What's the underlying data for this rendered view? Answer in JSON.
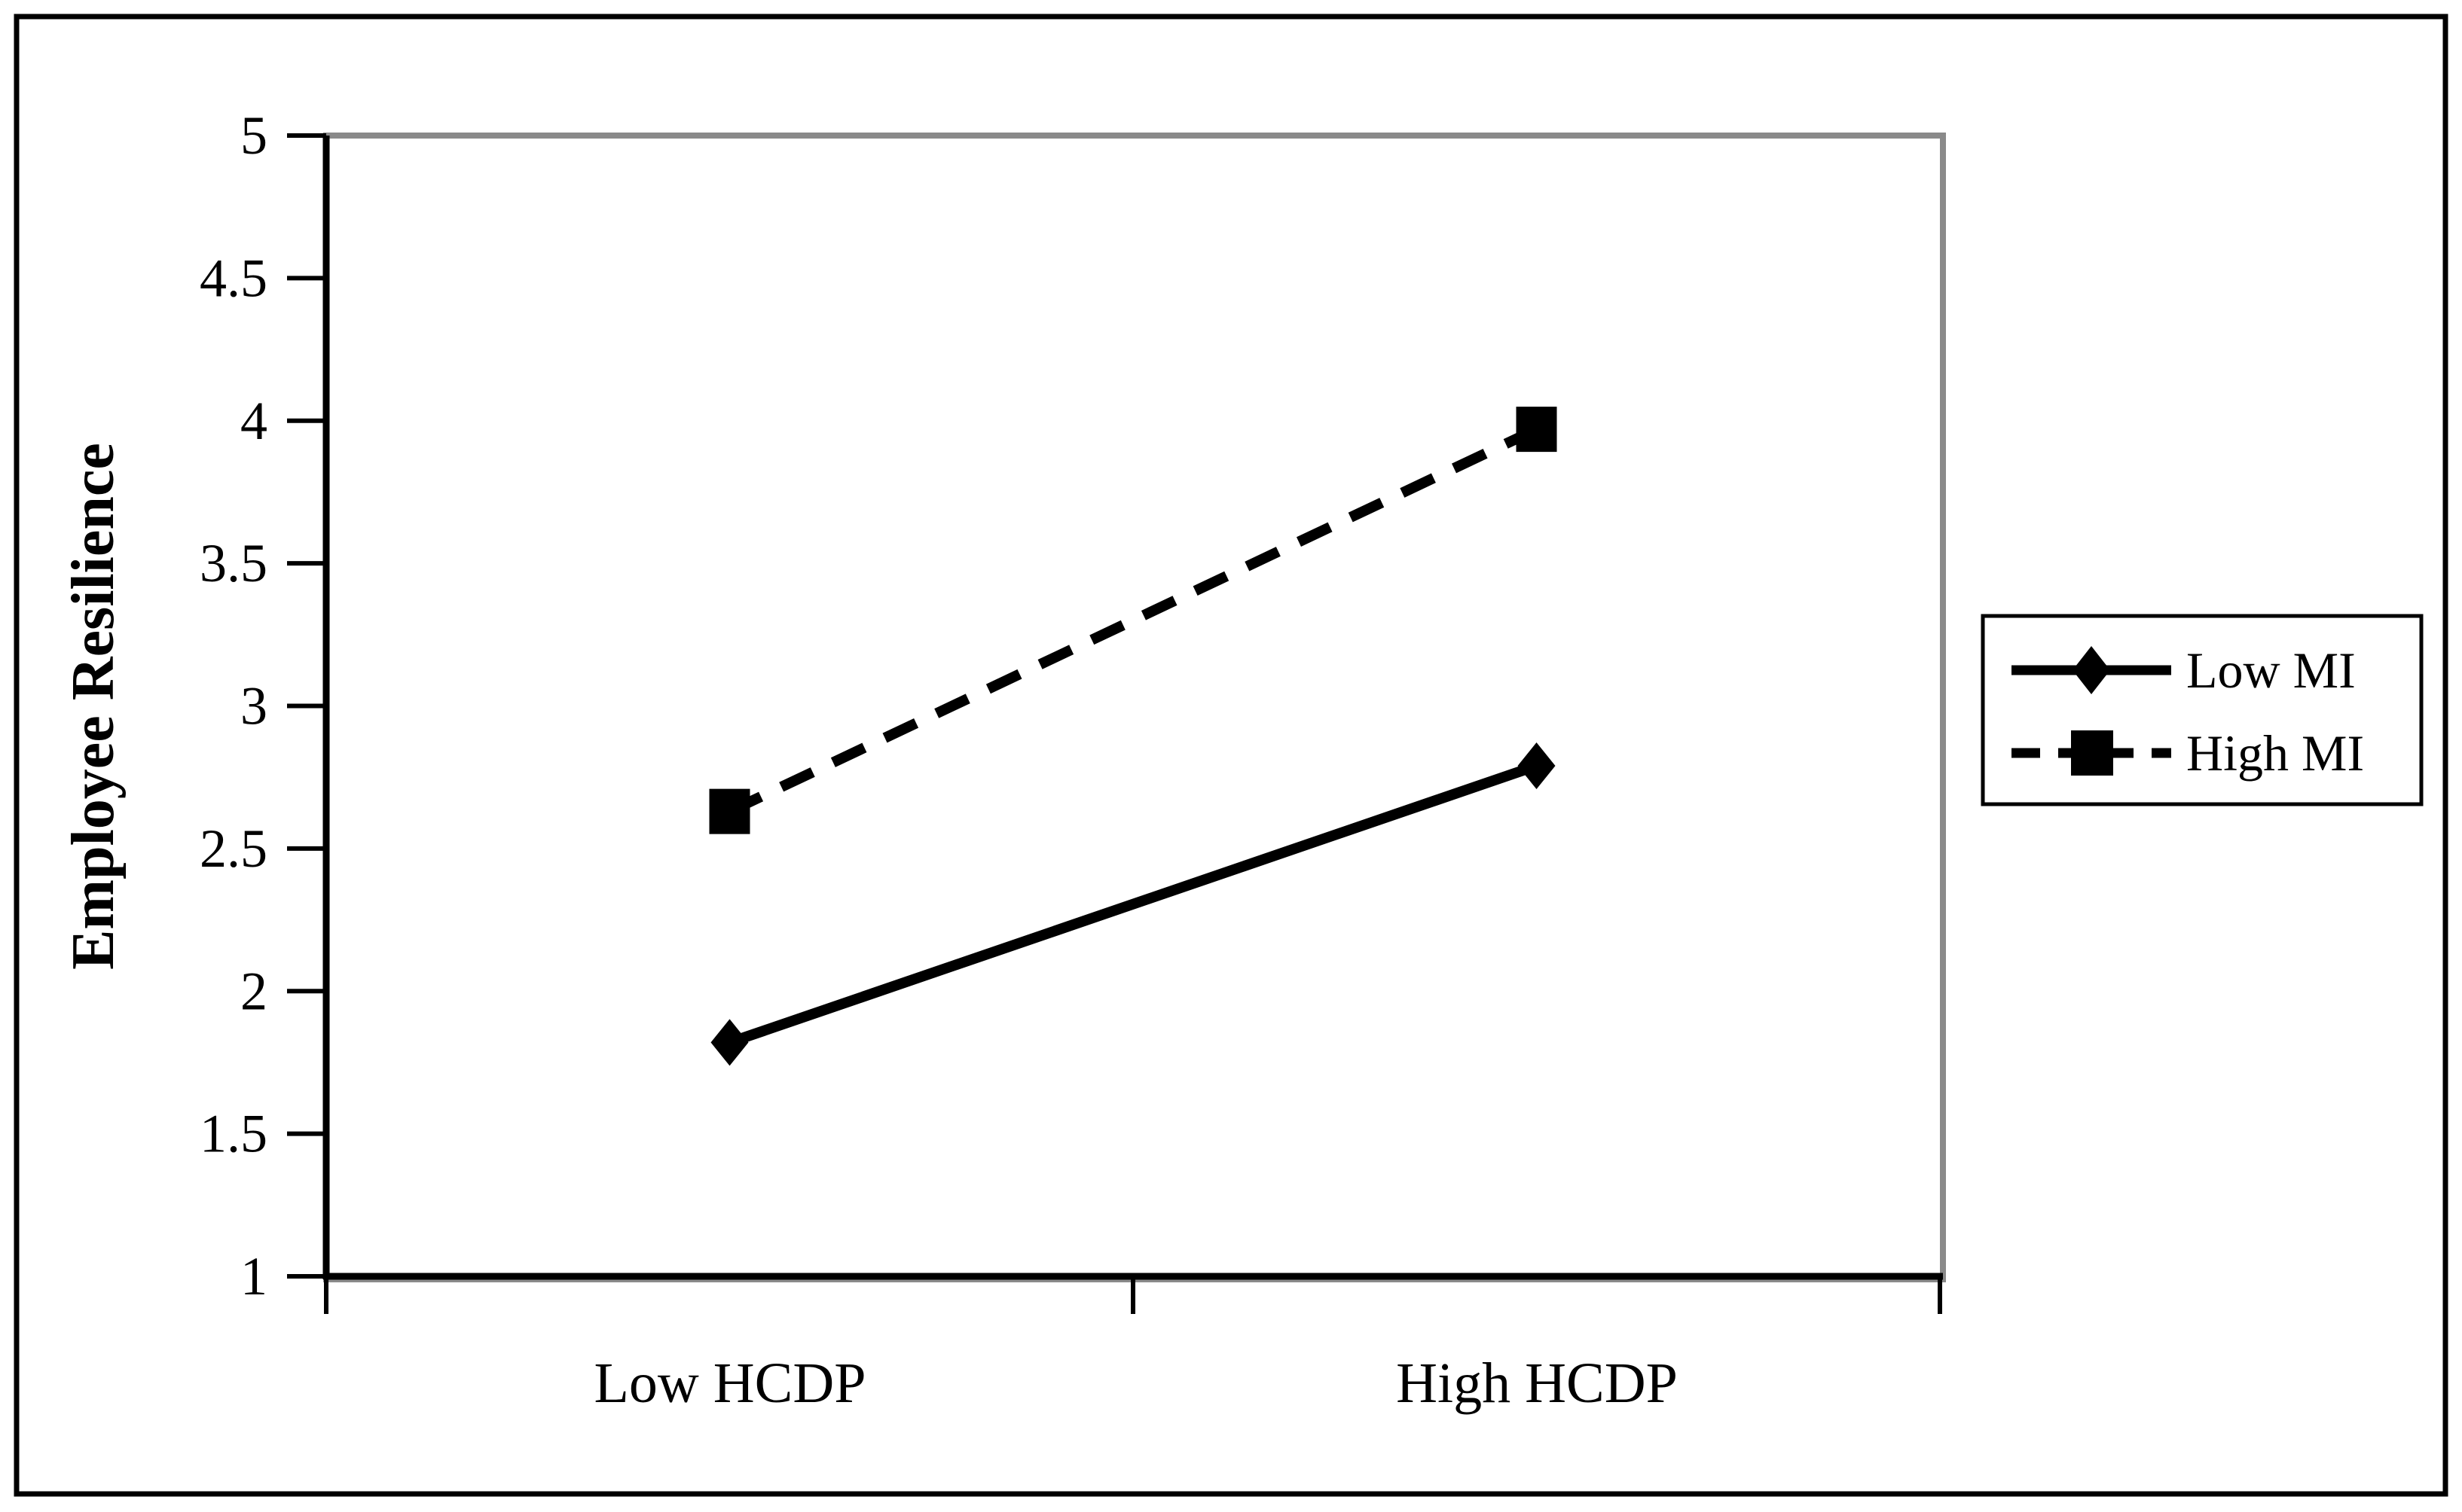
{
  "chart_data": {
    "type": "line",
    "title": "",
    "categories": [
      "Low HCDP",
      "High HCDP"
    ],
    "series": [
      {
        "name": "Low MI",
        "values": [
          1.82,
          2.79
        ],
        "line_style": "solid",
        "marker": "diamond",
        "color": "#000000"
      },
      {
        "name": "High MI",
        "values": [
          2.63,
          3.97
        ],
        "line_style": "dashed",
        "marker": "square",
        "color": "#000000"
      }
    ],
    "xlabel": "",
    "ylabel": "Employee Resilience",
    "ylim": [
      1,
      5
    ],
    "ytick_labels": [
      "5",
      "4.5",
      "4",
      "3.5",
      "3",
      "2.5",
      "2",
      "1.5",
      "1"
    ],
    "grid": false,
    "legend_position": "right",
    "colors": {
      "line": "#000000",
      "plot_border": "#8a8a8a",
      "legend_border": "#000000",
      "figure_border": "#000000",
      "background": "#ffffff"
    }
  }
}
